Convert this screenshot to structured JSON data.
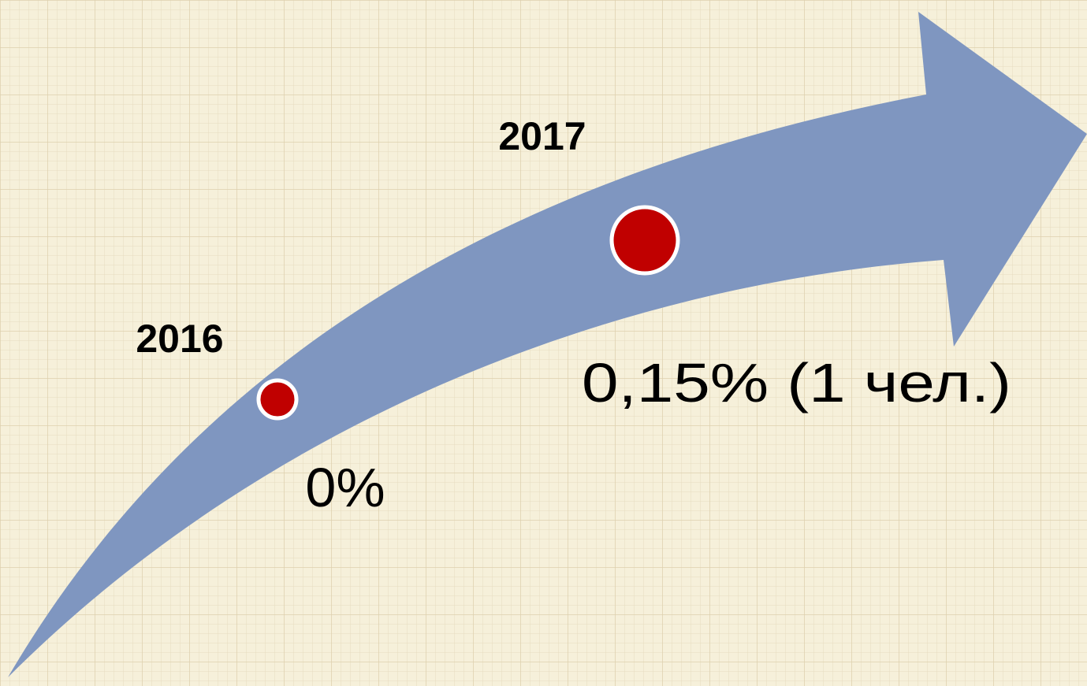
{
  "nodes": [
    {
      "year": "2016",
      "label": "0%"
    },
    {
      "year": "2017",
      "label": "0,15% (1 чел.)"
    }
  ]
}
